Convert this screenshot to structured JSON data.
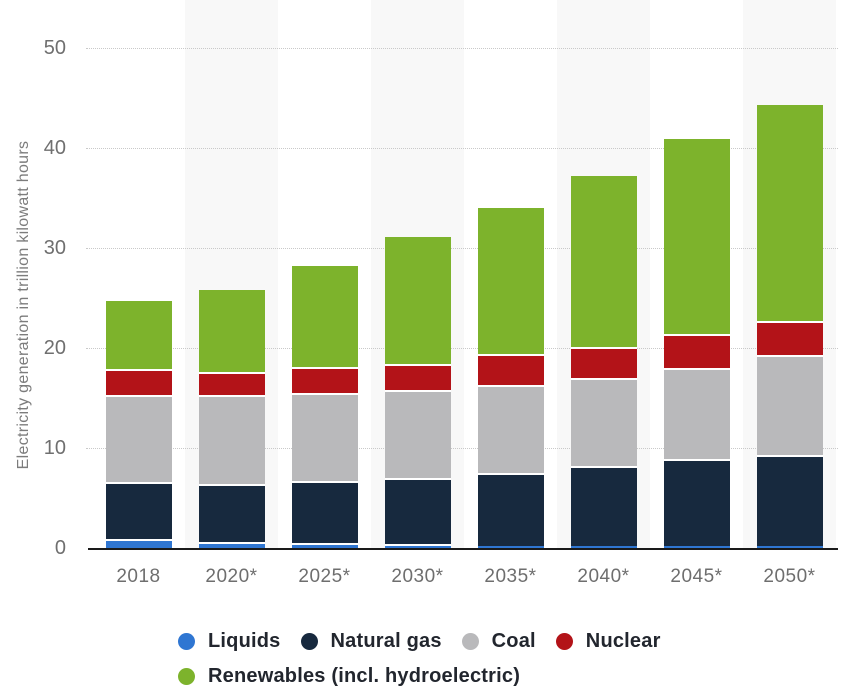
{
  "chart_data": {
    "type": "bar",
    "stacked": true,
    "title": "",
    "ylabel": "Electricity generation in trillion kilowatt hours",
    "xlabel": "",
    "ylim": [
      0,
      50
    ],
    "yticks": [
      0,
      10,
      20,
      30,
      40,
      50
    ],
    "grid": "horizontal-dotted",
    "column_stripe_color": "#f8f8f8",
    "legend_position": "bottom",
    "legend_rows": [
      [
        0,
        1,
        2,
        3
      ],
      [
        4
      ]
    ],
    "categories": [
      "2018",
      "2020*",
      "2025*",
      "2030*",
      "2035*",
      "2040*",
      "2045*",
      "2050*"
    ],
    "series": [
      {
        "name": "Liquids",
        "color": "#2f76d2",
        "values": [
          0.8,
          0.5,
          0.4,
          0.3,
          0.2,
          0.2,
          0.2,
          0.2
        ]
      },
      {
        "name": "Natural gas",
        "color": "#17293e",
        "values": [
          5.7,
          5.8,
          6.2,
          6.6,
          7.2,
          7.9,
          8.6,
          9.0
        ]
      },
      {
        "name": "Coal",
        "color": "#b9b9bb",
        "values": [
          8.7,
          8.9,
          8.8,
          8.8,
          8.8,
          8.8,
          9.1,
          10.0
        ]
      },
      {
        "name": "Nuclear",
        "color": "#b31318",
        "values": [
          2.6,
          2.3,
          2.6,
          2.6,
          3.1,
          3.1,
          3.4,
          3.4
        ]
      },
      {
        "name": "Renewables (incl. hydroelectric)",
        "color": "#7db32c",
        "values": [
          6.9,
          8.3,
          10.2,
          12.8,
          14.7,
          17.2,
          19.6,
          21.7
        ]
      }
    ],
    "totals": [
      24.7,
      25.8,
      28.2,
      31.1,
      34.0,
      37.2,
      40.9,
      44.3
    ]
  }
}
